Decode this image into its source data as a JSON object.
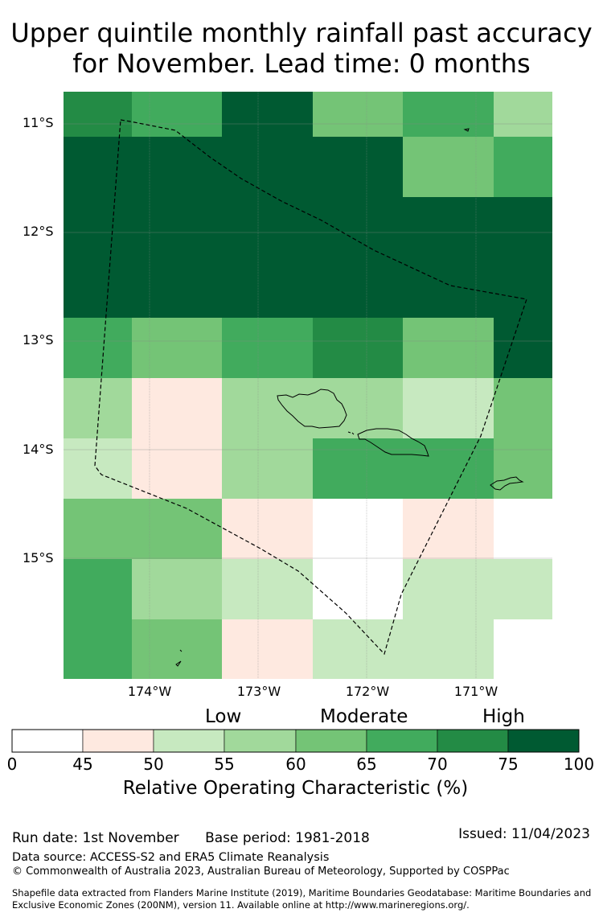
{
  "title": {
    "line1": "Upper quintile monthly rainfall past accuracy",
    "line2": "for November. Lead time: 0 months"
  },
  "map": {
    "lat_labels": [
      "11°S",
      "12°S",
      "13°S",
      "14°S",
      "15°S"
    ],
    "lon_labels": [
      "174°W",
      "173°W",
      "172°W",
      "171°W"
    ],
    "grid_roc": [
      [
        72,
        67,
        80,
        62,
        67,
        57
      ],
      [
        80,
        80,
        80,
        80,
        62,
        67
      ],
      [
        80,
        80,
        80,
        80,
        80,
        80
      ],
      [
        80,
        80,
        80,
        80,
        80,
        80
      ],
      [
        67,
        62,
        67,
        72,
        62,
        80
      ],
      [
        57,
        47,
        57,
        57,
        52,
        62
      ],
      [
        52,
        47,
        57,
        67,
        67,
        62
      ],
      [
        62,
        62,
        47,
        40,
        47,
        40
      ],
      [
        67,
        57,
        52,
        40,
        52,
        52
      ],
      [
        67,
        62,
        47,
        52,
        52,
        40
      ]
    ],
    "colors": {
      "land_outline": "#000000",
      "eez_line": "#000000",
      "gridline": "#888888"
    }
  },
  "colorbar": {
    "words": [
      "Low",
      "Moderate",
      "High"
    ],
    "ticks": [
      "0",
      "45",
      "50",
      "55",
      "60",
      "65",
      "70",
      "75",
      "100"
    ],
    "colors": [
      "#ffffff",
      "#fee9e0",
      "#c7e9c0",
      "#a1d99b",
      "#74c476",
      "#41ab5d",
      "#238b45",
      "#005a32"
    ],
    "title": "Relative Operating Characteristic (%)"
  },
  "footer": {
    "run_date": "Run date: 1st November",
    "base_period": "Base period: 1981-2018",
    "issued": "Issued: 11/04/2023",
    "data_source": "Data source: ACCESS-S2 and ERA5 Climate Reanalysis",
    "copyright": "© Commonwealth of Australia 2023, Australian Bureau of Meteorology, Supported by COSPPac",
    "shapefile": "Shapefile data extracted from Flanders Marine Institute (2019), Maritime Boundaries Geodatabase: Maritime Boundaries and Exclusive Economic Zones (200NM), version 11. Available online at http://www.marineregions.org/."
  }
}
